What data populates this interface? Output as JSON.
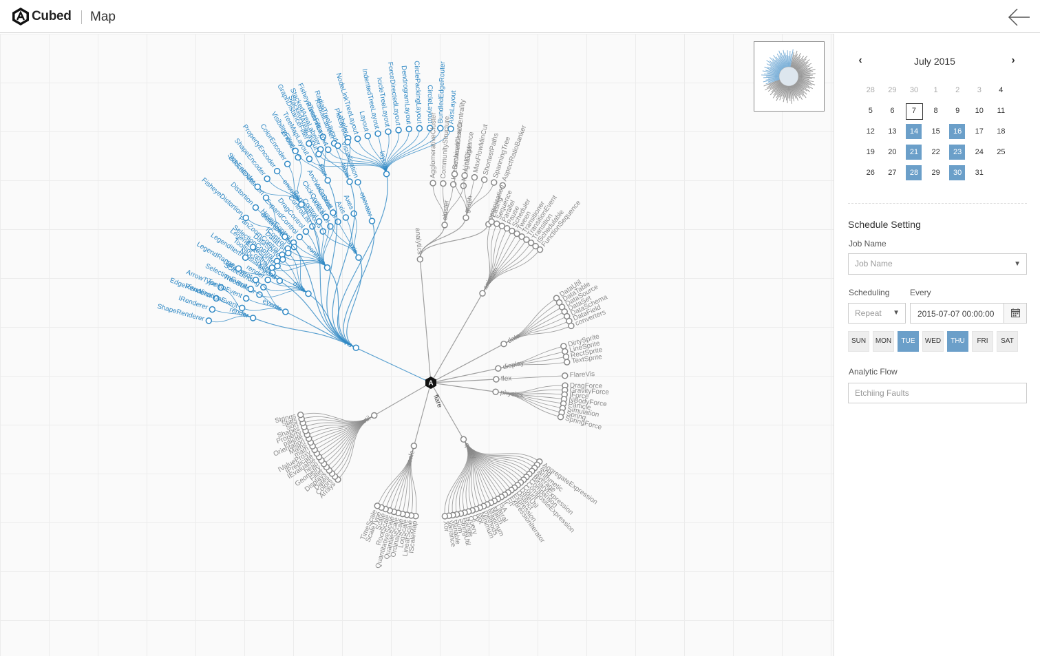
{
  "header": {
    "brand": "Cubed",
    "page_title": "Map"
  },
  "calendar": {
    "month_label": "July 2015",
    "weeks": [
      [
        {
          "d": "28",
          "muted": true
        },
        {
          "d": "29",
          "muted": true
        },
        {
          "d": "30",
          "muted": true
        },
        {
          "d": "1",
          "muted": true
        },
        {
          "d": "2",
          "muted": true
        },
        {
          "d": "3",
          "muted": true
        },
        {
          "d": "4"
        }
      ],
      [
        {
          "d": "5"
        },
        {
          "d": "6"
        },
        {
          "d": "7",
          "today": true
        },
        {
          "d": "8"
        },
        {
          "d": "9"
        },
        {
          "d": "10"
        },
        {
          "d": "11"
        }
      ],
      [
        {
          "d": "12"
        },
        {
          "d": "13"
        },
        {
          "d": "14",
          "sel": true
        },
        {
          "d": "15"
        },
        {
          "d": "16",
          "sel": true
        },
        {
          "d": "17"
        },
        {
          "d": "18"
        }
      ],
      [
        {
          "d": "19"
        },
        {
          "d": "20"
        },
        {
          "d": "21",
          "sel": true
        },
        {
          "d": "22"
        },
        {
          "d": "23",
          "sel": true
        },
        {
          "d": "24"
        },
        {
          "d": "25"
        }
      ],
      [
        {
          "d": "26"
        },
        {
          "d": "27"
        },
        {
          "d": "28",
          "sel": true
        },
        {
          "d": "29"
        },
        {
          "d": "30",
          "sel": true
        },
        {
          "d": "31"
        }
      ]
    ]
  },
  "schedule": {
    "title": "Schedule Setting",
    "job_name_label": "Job Name",
    "job_name_value": "Job Name",
    "scheduling_label": "Scheduling",
    "every_label": "Every",
    "scheduling_value": "Repeat",
    "date_value": "2015-07-07 00:00:00",
    "days": [
      {
        "label": "SUN",
        "on": false
      },
      {
        "label": "MON",
        "on": false
      },
      {
        "label": "TUE",
        "on": true
      },
      {
        "label": "WED",
        "on": false
      },
      {
        "label": "THU",
        "on": true
      },
      {
        "label": "FRI",
        "on": false
      },
      {
        "label": "SAT",
        "on": false
      }
    ],
    "flow_label": "Analytic Flow",
    "flow_value": "Etchiing Faults"
  },
  "map": {
    "root": "flare",
    "highlight": "#2f88c4",
    "normal": "#888888",
    "groups": [
      {
        "name": "vis",
        "hl": true,
        "a": -65,
        "r": 120,
        "children": [
          {
            "name": "axis",
            "a": -30,
            "r": 210,
            "leaves": [
              "CartesianAxes",
              "AxisLabel",
              "AxisGridLine",
              "Axis",
              "Axes"
            ]
          },
          {
            "name": "controls",
            "a": -42,
            "r": 225,
            "leaves": [
              "TooltipControl",
              "SelectionControl",
              "PanZoomControl",
              "IControl",
              "HoverControl",
              "ExpandControl",
              "DragControl",
              "ControlList",
              "Control",
              "ClickControl",
              "AnchorControl"
            ]
          },
          {
            "name": "data",
            "a": -54,
            "r": 220,
            "leaves": [
              "TreeBuilder",
              "ScaleBinding",
              "render",
              "NodeSprite",
              "EdgeSprite",
              "DataSprite",
              "DataList",
              "Data"
            ]
          },
          {
            "name": "render",
            "a": -70,
            "r": 275,
            "leaves": [
              "ShapeRenderer",
              "IRenderer",
              "EdgeRenderer",
              "ArrowType"
            ]
          },
          {
            "name": "events",
            "a": -64,
            "r": 235,
            "leaves": [
              "VisualizationEvent",
              "TooltipEvent",
              "SelectionEvent",
              "DataEvent"
            ]
          },
          {
            "name": "legend",
            "a": -56,
            "r": 265,
            "leaves": [
              "LegendRange",
              "LegendItem",
              "Legend"
            ]
          },
          {
            "name": "distortion",
            "a": -45,
            "r": 300,
            "leaves": [
              "FisheyeDistortion",
              "Distortion",
              "BifocalDistortion"
            ]
          },
          {
            "name": "encoder",
            "a": -36,
            "r": 320,
            "leaves": [
              "SizeEncoder",
              "ShapeEncoder",
              "PropertyEncoder",
              "ColorEncoder",
              "Encoder"
            ]
          },
          {
            "name": "operator",
            "a": -20,
            "r": 250,
            "leaves": [
              "Visualization"
            ]
          },
          {
            "name": "filter",
            "a": -27,
            "r": 330,
            "leaves": [
              "VisibilityFilter",
              "GraphDistanceFilter",
              "FisheyeTreeFilter"
            ]
          },
          {
            "name": "label",
            "a": -22,
            "r": 315,
            "leaves": [
              "StackedAreaLabeler",
              "RadialLabeler",
              "Labeler"
            ]
          },
          {
            "name": "layout",
            "a": -12,
            "r": 310,
            "leaves": [
              "TreeMapLayout",
              "StackedAreaLayout",
              "RandomLayout",
              "RadialTreeLayout",
              "PieLayout",
              "NodeLinkTreeLayout",
              "Layout",
              "IndentedTreeLayout",
              "IcicleTreeLayout",
              "ForceDirectedLayout",
              "DendrogramLayout",
              "CirclePackingLayout",
              "CircleLayout",
              "BundledEdgeRouter",
              "AxisLayout"
            ]
          }
        ]
      },
      {
        "name": "analytics",
        "hl": false,
        "a": -5,
        "r": 180,
        "children": [
          {
            "name": "cluster",
            "a": 5,
            "r": 230,
            "leaves": [
              "AgglomerativeCluster",
              "CommunityStructure",
              "HierarchicalCluster",
              "MergeEdge"
            ]
          },
          {
            "name": "graph",
            "a": 12,
            "r": 245,
            "leaves": [
              "BetweennessCentrality",
              "LinkDistance",
              "MaxFlowMinCut",
              "ShortestPaths",
              "SpanningTree"
            ]
          },
          {
            "name": "optimization",
            "a": 20,
            "r": 245,
            "leaves": [
              "AspectRatioBanker"
            ]
          }
        ]
      },
      {
        "name": "animate",
        "hl": false,
        "a": 30,
        "r": 150,
        "leaves": [
          "Easing",
          "Sequence",
          "Parallel",
          "Pause",
          "Scheduler",
          "Tween",
          "Transitioner",
          "TransitionEvent",
          "Transition",
          "ISchedulable",
          "FunctionSequence"
        ]
      },
      {
        "name": "data",
        "hl": false,
        "a": 62,
        "r": 120,
        "leaves": [
          "DataUtil",
          "DataTable",
          "DataSource",
          "DataSet",
          "DataSchema",
          "DataField",
          "converters"
        ]
      },
      {
        "name": "display",
        "hl": false,
        "a": 78,
        "r": 100,
        "leaves": [
          "DirtySprite",
          "LineSprite",
          "RectSprite",
          "TextSprite"
        ]
      },
      {
        "name": "flex",
        "hl": false,
        "a": 87,
        "r": 95,
        "leaves": [
          "FlareVis"
        ]
      },
      {
        "name": "physics",
        "hl": false,
        "a": 98,
        "r": 95,
        "leaves": [
          "DragForce",
          "GravityForce",
          "IForce",
          "NBodyForce",
          "Particle",
          "Simulation",
          "Spring",
          "SpringForce"
        ]
      },
      {
        "name": "query",
        "hl": false,
        "a": 150,
        "r": 95,
        "leaves": [
          "AggregateExpression",
          "And",
          "Arithmetic",
          "Average",
          "BinaryExpression",
          "Comparison",
          "CompositeExpression",
          "Count",
          "DateUtil",
          "Distinct",
          "Expression",
          "ExpressionIterator",
          "Fn",
          "If",
          "IsA",
          "Literal",
          "Match",
          "Maximum",
          "methods",
          "Minimum",
          "Not",
          "Or",
          "Query",
          "Range",
          "StringUtil",
          "Sum",
          "Variable",
          "Variance",
          "Xor"
        ]
      },
      {
        "name": "scale",
        "hl": false,
        "a": 195,
        "r": 95,
        "leaves": [
          "IScaleMap",
          "LinearScale",
          "LogScale",
          "OrdinalScale",
          "QuantileScale",
          "QuantitativeScale",
          "RootScale",
          "Scale",
          "ScaleType",
          "TimeScale"
        ]
      },
      {
        "name": "util",
        "hl": false,
        "a": 240,
        "r": 95,
        "leaves": [
          "Arrays",
          "Colors",
          "Dates",
          "Displays",
          "Filter",
          "Geometry",
          "heap",
          "IEvaluable",
          "IPredicate",
          "IValueProxy",
          "math",
          "Maths",
          "Orientation",
          "palette",
          "Property",
          "Shapes",
          "Sort",
          "Stats",
          "Strings"
        ]
      }
    ]
  }
}
